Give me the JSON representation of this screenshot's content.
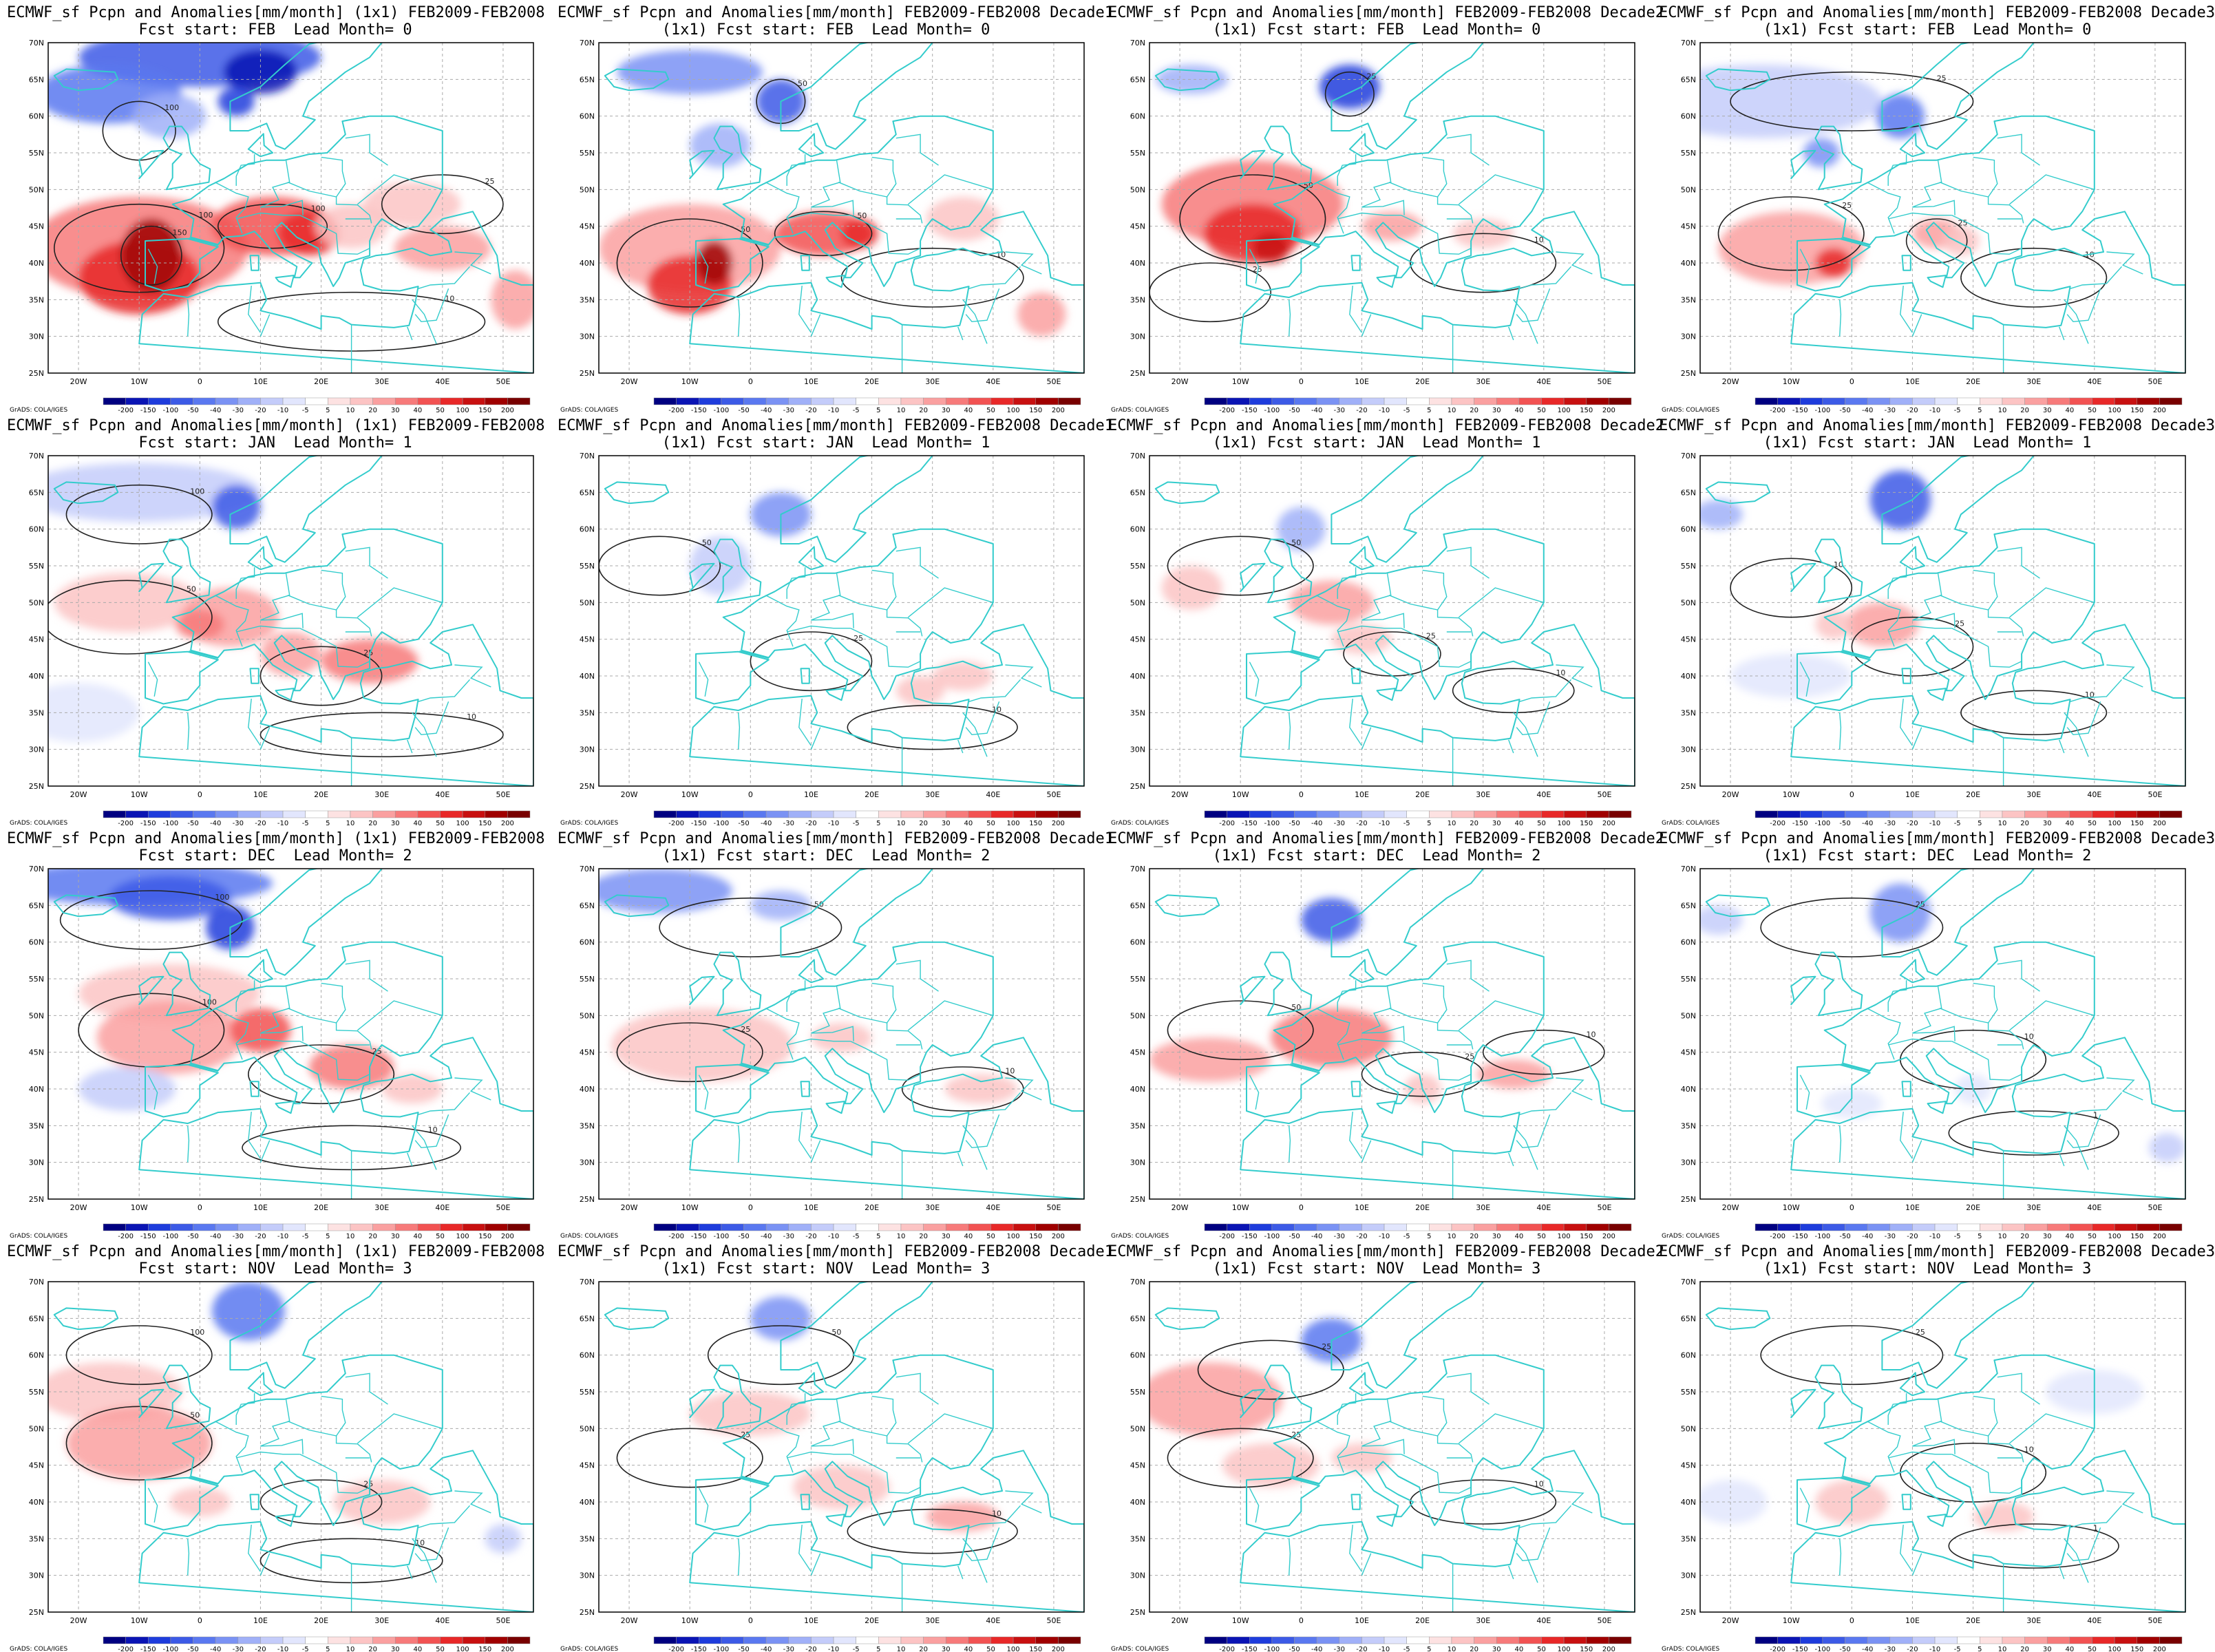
{
  "panels": [
    {
      "line1": "ECMWF_sf Pcpn and Anomalies[mm/month] (1x1) FEB2009-FEB2008",
      "line2": "Fcst start: FEB  Lead Month= 0",
      "variant": 0
    },
    {
      "line1": "ECMWF_sf Pcpn and Anomalies[mm/month] FEB2009-FEB2008 Decade1",
      "line2": "(1x1) Fcst start: FEB  Lead Month= 0",
      "variant": 1
    },
    {
      "line1": "ECMWF_sf Pcpn and Anomalies[mm/month] FEB2009-FEB2008 Decade2",
      "line2": "(1x1) Fcst start: FEB  Lead Month= 0",
      "variant": 2
    },
    {
      "line1": "ECMWF_sf Pcpn and Anomalies[mm/month] FEB2009-FEB2008 Decade3",
      "line2": "(1x1) Fcst start: FEB  Lead Month= 0",
      "variant": 3
    },
    {
      "line1": "ECMWF_sf Pcpn and Anomalies[mm/month] (1x1) FEB2009-FEB2008",
      "line2": "Fcst start: JAN  Lead Month= 1",
      "variant": 4
    },
    {
      "line1": "ECMWF_sf Pcpn and Anomalies[mm/month] FEB2009-FEB2008 Decade1",
      "line2": "(1x1) Fcst start: JAN  Lead Month= 1",
      "variant": 5
    },
    {
      "line1": "ECMWF_sf Pcpn and Anomalies[mm/month] FEB2009-FEB2008 Decade2",
      "line2": "(1x1) Fcst start: JAN  Lead Month= 1",
      "variant": 6
    },
    {
      "line1": "ECMWF_sf Pcpn and Anomalies[mm/month] FEB2009-FEB2008 Decade3",
      "line2": "(1x1) Fcst start: JAN  Lead Month= 1",
      "variant": 7
    },
    {
      "line1": "ECMWF_sf Pcpn and Anomalies[mm/month] (1x1) FEB2009-FEB2008",
      "line2": "Fcst start: DEC  Lead Month= 2",
      "variant": 8
    },
    {
      "line1": "ECMWF_sf Pcpn and Anomalies[mm/month] FEB2009-FEB2008 Decade1",
      "line2": "(1x1) Fcst start: DEC  Lead Month= 2",
      "variant": 9
    },
    {
      "line1": "ECMWF_sf Pcpn and Anomalies[mm/month] FEB2009-FEB2008 Decade2",
      "line2": "(1x1) Fcst start: DEC  Lead Month= 2",
      "variant": 10
    },
    {
      "line1": "ECMWF_sf Pcpn and Anomalies[mm/month] FEB2009-FEB2008 Decade3",
      "line2": "(1x1) Fcst start: DEC  Lead Month= 2",
      "variant": 11
    },
    {
      "line1": "ECMWF_sf Pcpn and Anomalies[mm/month] (1x1) FEB2009-FEB2008",
      "line2": "Fcst start: NOV  Lead Month= 3",
      "variant": 12
    },
    {
      "line1": "ECMWF_sf Pcpn and Anomalies[mm/month] FEB2009-FEB2008 Decade1",
      "line2": "(1x1) Fcst start: NOV  Lead Month= 3",
      "variant": 13
    },
    {
      "line1": "ECMWF_sf Pcpn and Anomalies[mm/month] FEB2009-FEB2008 Decade2",
      "line2": "(1x1) Fcst start: NOV  Lead Month= 3",
      "variant": 14
    },
    {
      "line1": "ECMWF_sf Pcpn and Anomalies[mm/month] FEB2009-FEB2008 Decade3",
      "line2": "(1x1) Fcst start: NOV  Lead Month= 3",
      "variant": 15
    }
  ],
  "lat_labels": [
    "70N",
    "65N",
    "60N",
    "55N",
    "50N",
    "45N",
    "40N",
    "35N",
    "30N",
    "25N"
  ],
  "lon_labels": [
    "20W",
    "10W",
    "0",
    "10E",
    "20E",
    "30E",
    "40E",
    "50E"
  ],
  "colorbar": {
    "levels": [
      "-200",
      "-150",
      "-100",
      "-50",
      "-40",
      "-30",
      "-20",
      "-10",
      "-5",
      "5",
      "10",
      "20",
      "30",
      "40",
      "50",
      "100",
      "150",
      "200"
    ],
    "colors": [
      "#000080",
      "#0a14b4",
      "#1e3cdc",
      "#3c5ae6",
      "#5a78f0",
      "#7a92f4",
      "#a0b0f8",
      "#c4ccfa",
      "#e2e6fd",
      "#ffffff",
      "#fde2e2",
      "#fcc4c4",
      "#faa0a0",
      "#f77a7a",
      "#f25252",
      "#e82828",
      "#c81010",
      "#a00000",
      "#780000"
    ],
    "credit": "GrADS: COLA/IGES"
  },
  "colors": {
    "coast": "#33cccc",
    "contour": "#222222",
    "grid": "#aaaaaa"
  }
}
